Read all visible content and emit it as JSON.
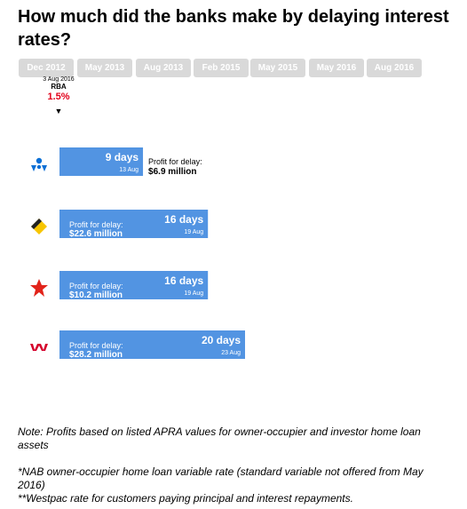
{
  "title": "How much did the banks make by delaying interest rates?",
  "tabs": [
    "Dec 2012",
    "May 2013",
    "Aug 2013",
    "Feb 2015",
    "May 2015",
    "May 2016",
    "Aug 2016"
  ],
  "rba": {
    "date": "3 Aug 2016",
    "label": "RBA",
    "rate": "1.5%",
    "arrow": "▼"
  },
  "colors": {
    "bar": "#5294e2",
    "rate": "#e2001a",
    "tab": "#d9d9d9"
  },
  "chart_data": {
    "type": "bar",
    "orientation": "horizontal",
    "unit": "days",
    "profit_label": "Profit for delay:",
    "categories": [
      "nab-logo-icon",
      "commbank-logo-icon",
      "anz-logo-icon",
      "westpac-logo-icon"
    ],
    "values": [
      9,
      16,
      16,
      20
    ],
    "value_labels": [
      "9 days",
      "16 days",
      "16 days",
      "20 days"
    ],
    "dates": [
      "13 Aug",
      "19 Aug",
      "19 Aug",
      "23 Aug"
    ],
    "profits": [
      "$6.9 million",
      "$22.6 million",
      "$10.2 million",
      "$28.2 million"
    ],
    "xlim": [
      0,
      20
    ]
  },
  "notes": {
    "note1": "Note: Profits based on listed APRA values for owner-occupier and investor home loan assets",
    "note2": "*NAB owner-occupier home loan variable rate (standard variable not offered from May 2016)",
    "note3": "**Westpac rate for customers paying principal and interest repayments."
  }
}
